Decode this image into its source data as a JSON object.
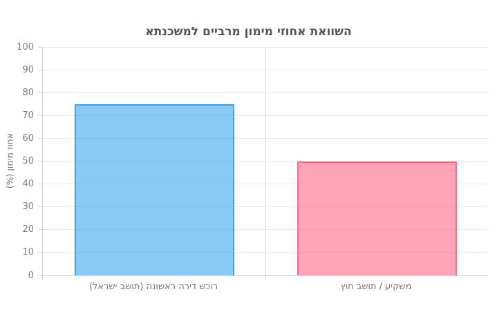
{
  "chart": {
    "title": "השוואת אחוזי מימון מרביים למשכנתא",
    "ylabel": "אחוז מימון (%)"
  },
  "chart_data": {
    "type": "bar",
    "categories": [
      "רוכש דירה ראשונה (תושב ישראל)",
      "משקיע / תושב חוץ"
    ],
    "values": [
      75,
      50
    ],
    "title": "השוואת אחוזי מימון מרביים למשכנתא",
    "xlabel": "",
    "ylabel": "אחוז מימון (%)",
    "ylim": [
      0,
      100
    ],
    "ytick_step": 10,
    "yticks": [
      0,
      10,
      20,
      30,
      40,
      50,
      60,
      70,
      80,
      90,
      100
    ],
    "grid": true,
    "legend": "none",
    "bar_styles": [
      {
        "fill": "rgba(54,162,235,0.58)",
        "border": "rgba(54,162,235,0.95)"
      },
      {
        "fill": "rgba(255,99,132,0.59)",
        "border": "rgba(255,99,132,0.92)"
      }
    ]
  },
  "colors": {
    "title_text": "#545454",
    "tick_text": "#7d7d7d",
    "category_text": "#757575",
    "grid_line": "#e6e6e6",
    "axis_line": "#d3d3d3",
    "divider_line": "#d6d6d6",
    "background": "#ffffff"
  }
}
